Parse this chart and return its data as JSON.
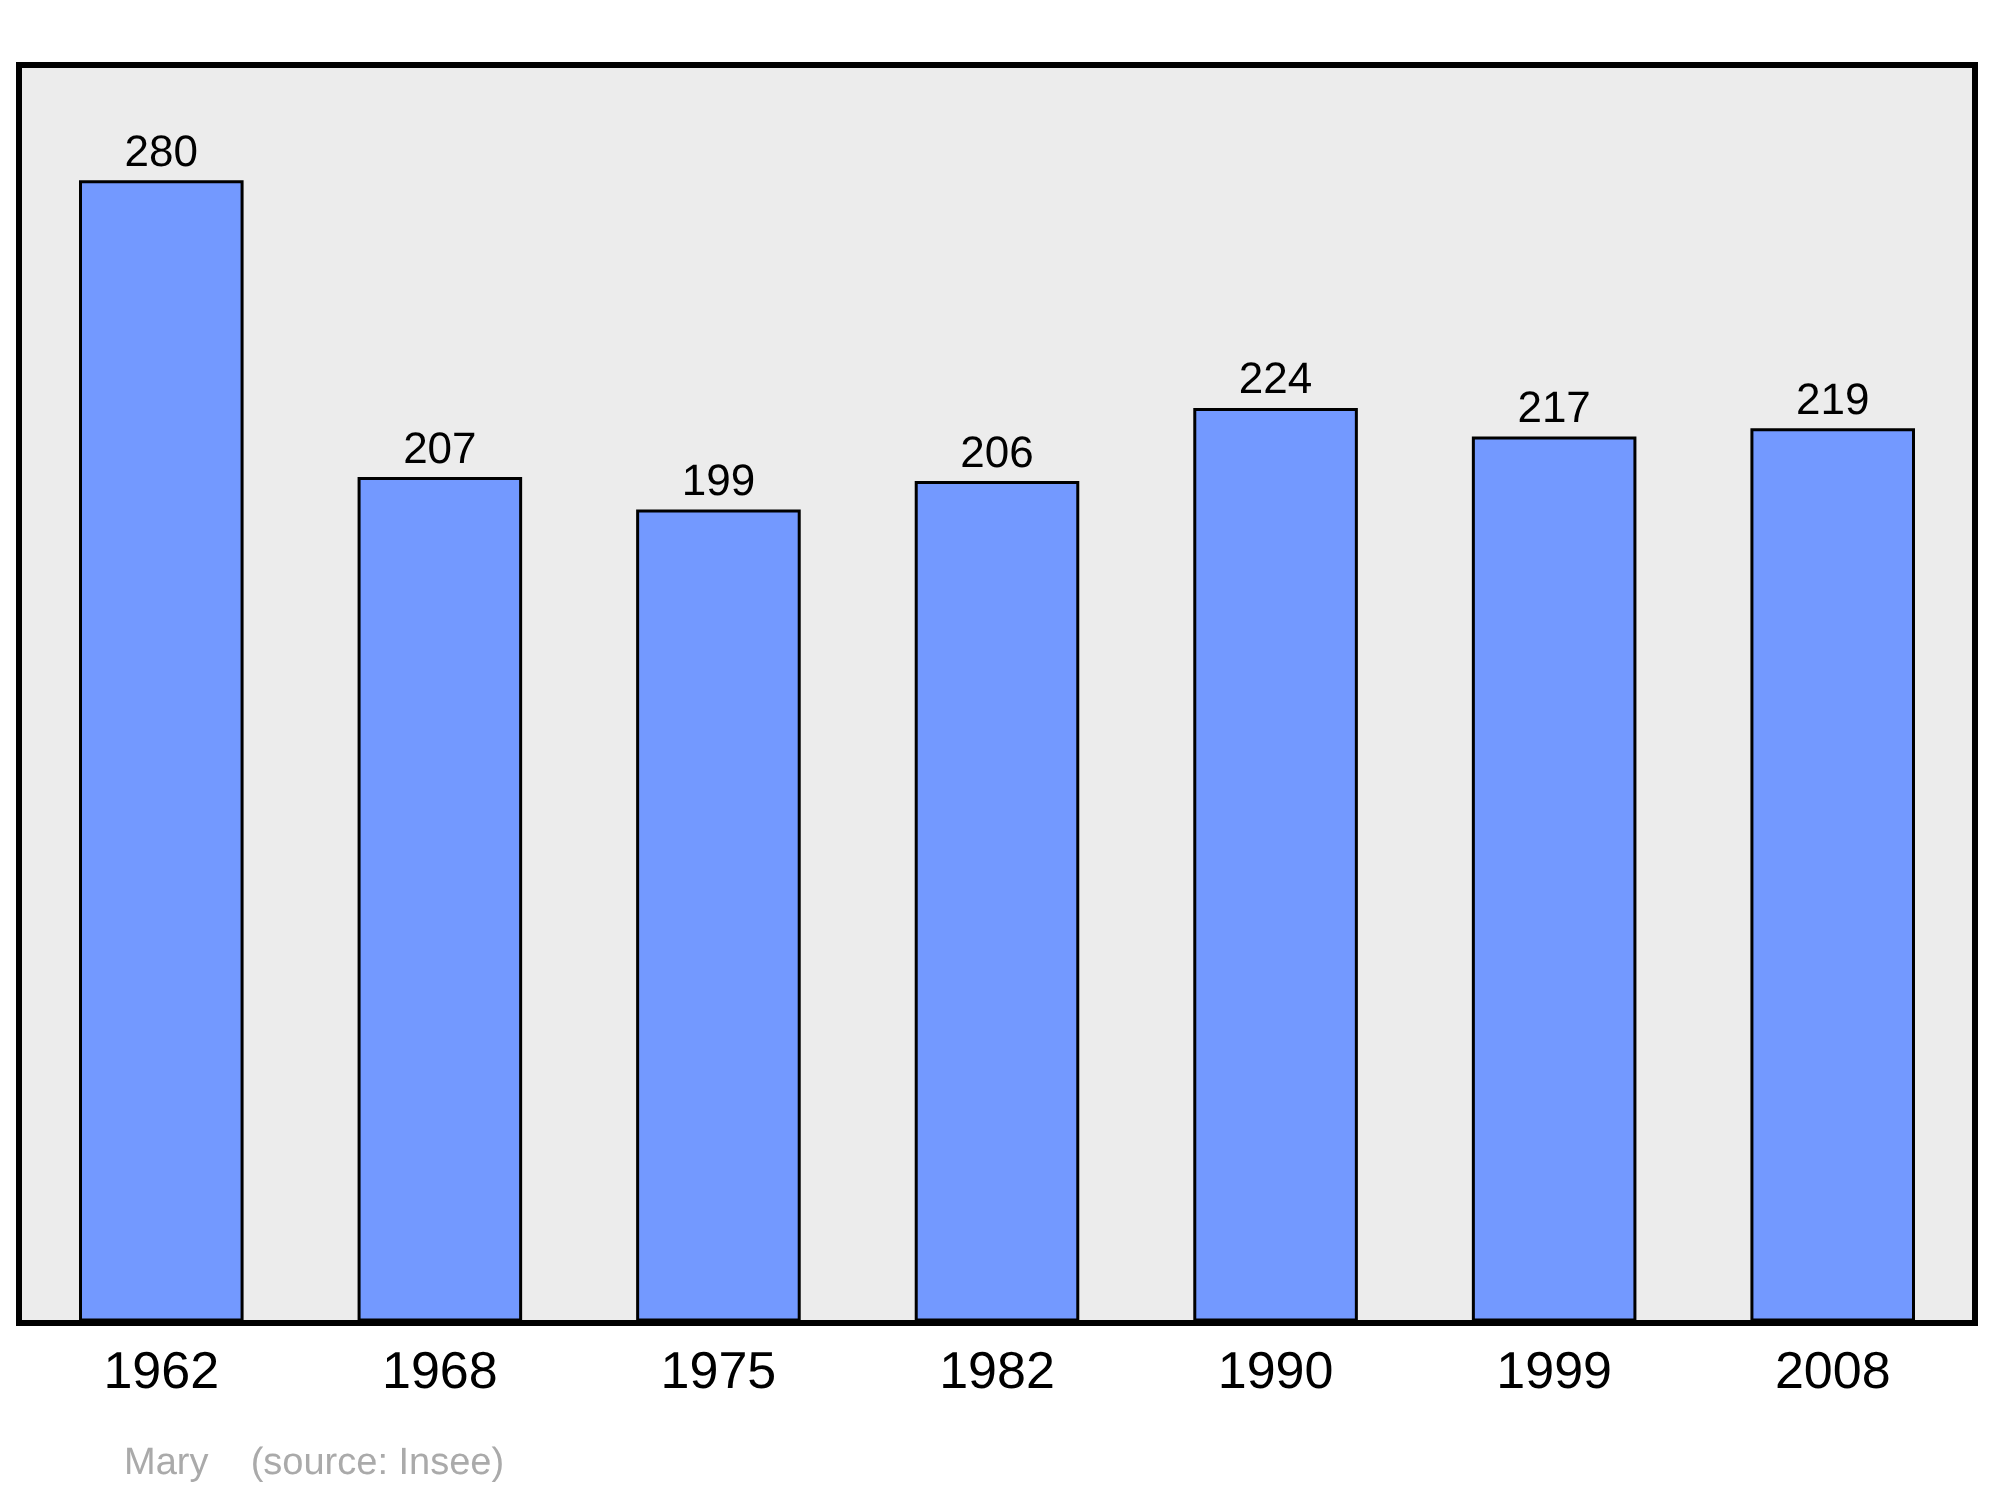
{
  "chart_data": {
    "type": "bar",
    "categories": [
      "1962",
      "1968",
      "1975",
      "1982",
      "1990",
      "1999",
      "2008"
    ],
    "values": [
      280,
      207,
      199,
      206,
      224,
      217,
      219
    ],
    "color": "#7399ff",
    "data_labels": true,
    "ylim": [
      0,
      308
    ],
    "tick_labels": "x",
    "grid": false,
    "legend": false,
    "annotations": [
      "Mary    (source: Insee)"
    ]
  }
}
